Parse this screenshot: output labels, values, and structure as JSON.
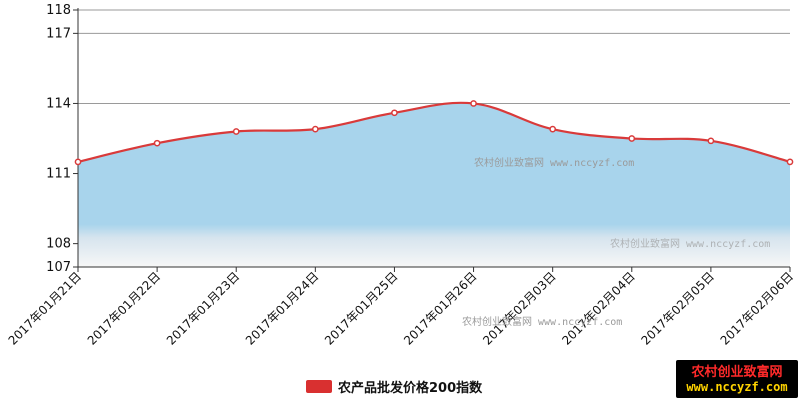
{
  "chart_data": {
    "type": "area",
    "title": "",
    "xlabel": "",
    "ylabel": "",
    "categories": [
      "2017年01月21日",
      "2017年01月22日",
      "2017年01月23日",
      "2017年01月24日",
      "2017年01月25日",
      "2017年01月26日",
      "2017年02月03日",
      "2017年02月04日",
      "2017年02月05日",
      "2017年02月06日"
    ],
    "series": [
      {
        "name": "农产品批发价格200指数",
        "values": [
          111.5,
          112.3,
          112.8,
          112.9,
          113.6,
          114.0,
          112.9,
          112.5,
          112.4,
          111.5
        ]
      }
    ],
    "yticks": [
      107,
      108,
      111,
      114,
      117,
      118
    ],
    "ylim": [
      107,
      118
    ],
    "grid": true,
    "smooth": true,
    "legend_position": "bottom-center",
    "colors": {
      "line": "#d93a3a",
      "fill": "#a8d4ec",
      "legend_swatch": "#d93030"
    }
  },
  "watermark": {
    "text1": "农村创业致富网 www.nccyzf.com",
    "text2": "农村创业致富网 www.nccyzf.com",
    "text3": "农村创业致富网 www.nccyzf.com"
  },
  "badge": {
    "line1": "农村创业致富网",
    "line2": "www.nccyzf.com"
  }
}
